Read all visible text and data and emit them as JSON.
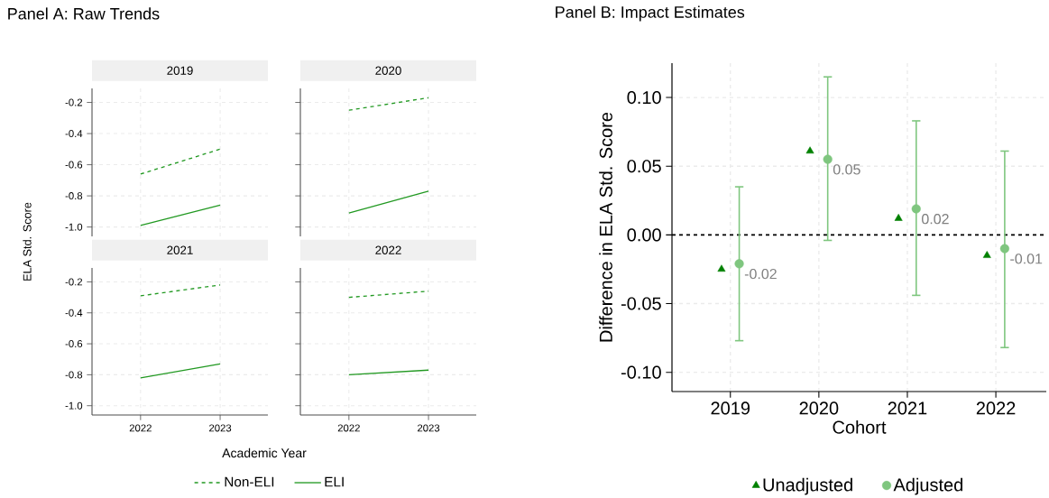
{
  "chart_data": [
    {
      "type": "line",
      "title": "2019",
      "annotations": [
        "Panel A: Raw Trends"
      ],
      "xlabel": "Academic Year",
      "ylabel": "ELA Std. Score",
      "categories": [
        "2022",
        "2023"
      ],
      "ylim": [
        -1.06,
        -0.11
      ],
      "yticks": [
        {
          "value": -1,
          "label": "-1.0"
        },
        -0.8,
        -0.6,
        -0.4,
        -0.2
      ],
      "grid": true,
      "legend": "bottom",
      "tick_labels": "y",
      "series": [
        {
          "name": "Non-ELI",
          "color": "#229922",
          "line_style": "dashed",
          "values": [
            -0.66,
            -0.5
          ]
        },
        {
          "name": "ELI",
          "color": "#229922",
          "line_style": "solid",
          "values": [
            -0.99,
            -0.86
          ]
        }
      ]
    },
    {
      "type": "line",
      "title": "2020",
      "categories": [
        "2022",
        "2023"
      ],
      "ylim": [
        -1.06,
        -0.11
      ],
      "yticks": [
        {
          "value": -1,
          "label": null
        },
        {
          "value": -0.8,
          "label": null
        },
        {
          "value": -0.6,
          "label": null
        },
        {
          "value": -0.4,
          "label": null
        },
        {
          "value": -0.2,
          "label": null
        }
      ],
      "grid": true,
      "tick_labels": false,
      "series": [
        {
          "color": "#229922",
          "line_style": "dashed",
          "values": [
            -0.25,
            -0.17
          ]
        },
        {
          "color": "#229922",
          "line_style": "solid",
          "values": [
            -0.91,
            -0.77
          ]
        }
      ]
    },
    {
      "type": "line",
      "title": "2021",
      "categories": [
        "2022",
        "2023"
      ],
      "ylim": [
        -1.06,
        -0.11
      ],
      "yticks": [
        {
          "value": -1,
          "label": "-1.0"
        },
        -0.8,
        -0.6,
        -0.4,
        -0.2
      ],
      "grid": true,
      "series": [
        {
          "color": "#229922",
          "line_style": "dashed",
          "values": [
            -0.29,
            -0.22
          ]
        },
        {
          "color": "#229922",
          "line_style": "solid",
          "values": [
            -0.82,
            -0.73
          ]
        }
      ]
    },
    {
      "type": "line",
      "title": "2022",
      "categories": [
        "2022",
        "2023"
      ],
      "ylim": [
        -1.06,
        -0.11
      ],
      "yticks": [
        {
          "value": -1,
          "label": null
        },
        {
          "value": -0.8,
          "label": null
        },
        {
          "value": -0.6,
          "label": null
        },
        {
          "value": -0.4,
          "label": null
        },
        {
          "value": -0.2,
          "label": null
        }
      ],
      "grid": true,
      "tick_labels": "x",
      "series": [
        {
          "color": "#229922",
          "line_style": "dashed",
          "values": [
            -0.3,
            -0.26
          ]
        },
        {
          "color": "#229922",
          "line_style": "solid",
          "values": [
            -0.8,
            -0.77
          ]
        }
      ]
    },
    {
      "type": "scatter",
      "title": "Panel B: Impact Estimates",
      "xlabel": "Cohort",
      "ylabel": "Difference in ELA Std. Score",
      "categories": [
        "2019",
        "2020",
        "2021",
        "2022"
      ],
      "ylim": [
        -0.114,
        0.125
      ],
      "yticks": [
        {
          "value": -0.1,
          "label": "-0.10"
        },
        {
          "value": -0.05,
          "label": "-0.05"
        },
        {
          "value": 0,
          "label": "0.00"
        },
        {
          "value": 0.05,
          "label": "0.05"
        },
        {
          "value": 0.1,
          "label": "0.10"
        }
      ],
      "grid": true,
      "legend": "bottom",
      "ref_lines": [
        {
          "axis": "y",
          "value": 0,
          "color": "#000000",
          "line_style": "dashed"
        }
      ],
      "series": [
        {
          "name": "Unadjusted",
          "color": "#008000",
          "marker": "triangle",
          "values": [
            -0.025,
            0.061,
            0.012,
            -0.015
          ]
        },
        {
          "name": "Adjusted",
          "color": "#7fc67f",
          "marker": "circle",
          "values": [
            -0.021,
            0.055,
            0.019,
            -0.01
          ],
          "errors": [
            [
              -0.077,
              0.035
            ],
            [
              -0.004,
              0.115
            ],
            [
              -0.044,
              0.083
            ],
            [
              -0.082,
              0.061
            ]
          ],
          "value_labels": [
            "-0.02",
            "0.05",
            "0.02",
            "-0.01"
          ]
        }
      ]
    }
  ]
}
